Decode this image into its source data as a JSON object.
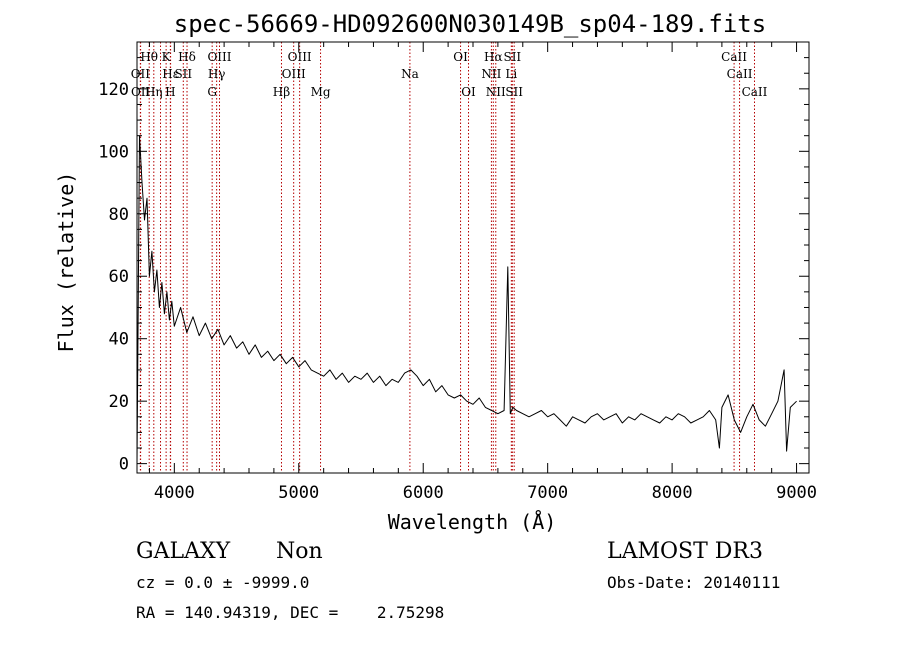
{
  "chart_data": {
    "type": "line",
    "title": "spec-56669-HD092600N030149B_sp04-189.fits",
    "xlabel": "Wavelength (Å)",
    "ylabel": "Flux (relative)",
    "xlim": [
      3700,
      9100
    ],
    "ylim": [
      -3,
      135
    ],
    "x_ticks": [
      4000,
      5000,
      6000,
      7000,
      8000,
      9000
    ],
    "y_ticks": [
      0,
      20,
      40,
      60,
      80,
      100,
      120
    ],
    "grid": false,
    "series": [
      {
        "x": [
          3700,
          3720,
          3740,
          3760,
          3780,
          3800,
          3820,
          3840,
          3860,
          3880,
          3900,
          3920,
          3940,
          3960,
          3980,
          4000,
          4050,
          4100,
          4150,
          4200,
          4250,
          4300,
          4350,
          4400,
          4450,
          4500,
          4550,
          4600,
          4650,
          4700,
          4750,
          4800,
          4850,
          4900,
          4950,
          5000,
          5050,
          5100,
          5150,
          5200,
          5250,
          5300,
          5350,
          5400,
          5450,
          5500,
          5550,
          5600,
          5650,
          5700,
          5750,
          5800,
          5850,
          5900,
          5950,
          6000,
          6050,
          6100,
          6150,
          6200,
          6250,
          6300,
          6350,
          6400,
          6450,
          6500,
          6550,
          6600,
          6650,
          6680,
          6700,
          6720,
          6750,
          6800,
          6850,
          6900,
          6950,
          7000,
          7050,
          7100,
          7150,
          7200,
          7250,
          7300,
          7350,
          7400,
          7450,
          7500,
          7550,
          7600,
          7650,
          7700,
          7750,
          7800,
          7850,
          7900,
          7950,
          8000,
          8050,
          8100,
          8150,
          8200,
          8250,
          8300,
          8350,
          8380,
          8400,
          8450,
          8500,
          8550,
          8600,
          8650,
          8700,
          8750,
          8800,
          8850,
          8900,
          8920,
          8950,
          9000
        ],
        "y": [
          0,
          105,
          90,
          78,
          85,
          60,
          68,
          55,
          62,
          50,
          58,
          48,
          55,
          46,
          52,
          44,
          50,
          42,
          47,
          41,
          45,
          40,
          43,
          38,
          41,
          37,
          39,
          35,
          38,
          34,
          36,
          33,
          35,
          32,
          34,
          31,
          33,
          30,
          29,
          28,
          30,
          27,
          29,
          26,
          28,
          27,
          29,
          26,
          28,
          25,
          27,
          26,
          29,
          30,
          28,
          25,
          27,
          23,
          25,
          22,
          21,
          22,
          20,
          19,
          21,
          18,
          17,
          16,
          17,
          63,
          16,
          18,
          17,
          16,
          15,
          16,
          17,
          15,
          16,
          14,
          12,
          15,
          14,
          13,
          15,
          16,
          14,
          15,
          16,
          13,
          15,
          14,
          16,
          15,
          14,
          13,
          15,
          14,
          16,
          15,
          13,
          14,
          15,
          17,
          14,
          5,
          18,
          22,
          14,
          10,
          15,
          19,
          14,
          12,
          16,
          20,
          30,
          4,
          18,
          20
        ]
      }
    ],
    "lines_row1": [
      {
        "label": "Hθ",
        "x": 3798
      },
      {
        "label": "K",
        "x": 3934
      },
      {
        "label": "Hδ",
        "x": 4102
      },
      {
        "label": "OIII",
        "x": 4363
      },
      {
        "label": "OIII",
        "x": 5007
      },
      {
        "label": "OI",
        "x": 6300
      },
      {
        "label": "Hα",
        "x": 6563
      },
      {
        "label": "SII",
        "x": 6716
      },
      {
        "label": "CaII",
        "x": 8498
      }
    ],
    "lines_row2": [
      {
        "label": "OII",
        "x": 3727
      },
      {
        "label": "Hε",
        "x": 3970
      },
      {
        "label": "SII",
        "x": 4072
      },
      {
        "label": "Hγ",
        "x": 4340
      },
      {
        "label": "OIII",
        "x": 4959
      },
      {
        "label": "Na",
        "x": 5893
      },
      {
        "label": "NII",
        "x": 6548
      },
      {
        "label": "Li",
        "x": 6708
      },
      {
        "label": "CaII",
        "x": 8542
      }
    ],
    "lines_row3": [
      {
        "label": "OII",
        "x": 3729
      },
      {
        "label": "Hη",
        "x": 3835
      },
      {
        "label": "H",
        "x": 3968
      },
      {
        "label": "G",
        "x": 4304
      },
      {
        "label": "Hβ",
        "x": 4861
      },
      {
        "label": "Mg",
        "x": 5175
      },
      {
        "label": "OI",
        "x": 6364
      },
      {
        "label": "NII",
        "x": 6583
      },
      {
        "label": "SII",
        "x": 6731
      },
      {
        "label": "CaII",
        "x": 8662
      }
    ],
    "marker_lines_x": [
      3727,
      3729,
      3798,
      3835,
      3889,
      3934,
      3968,
      3970,
      4072,
      4102,
      4304,
      4340,
      4363,
      4861,
      4959,
      5007,
      5175,
      5893,
      6300,
      6364,
      6548,
      6563,
      6583,
      6708,
      6716,
      6731,
      8498,
      8542,
      8662
    ]
  },
  "info": {
    "class": "GALAXY",
    "subclass": "Non",
    "survey": "LAMOST DR3",
    "cz": "cz = 0.0 ± -9999.0",
    "obs_date": "Obs-Date: 20140111",
    "radec": "RA = 140.94319, DEC =    2.75298"
  },
  "colors": {
    "marker_line": "#b40000",
    "spectrum": "#000000",
    "axis": "#000000"
  }
}
